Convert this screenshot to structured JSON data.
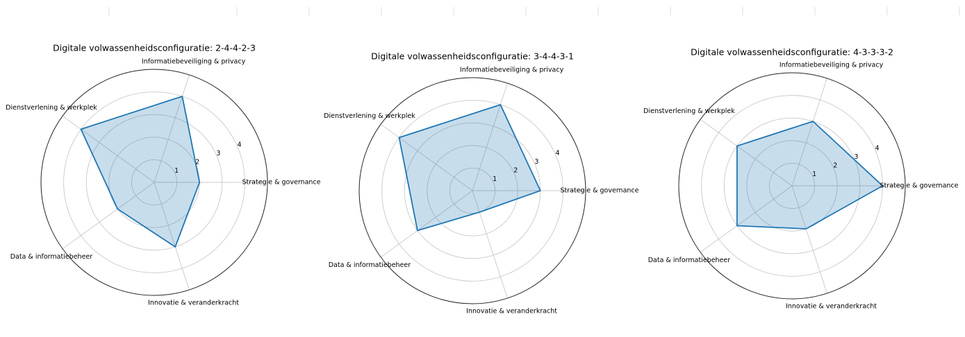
{
  "chart_data": [
    {
      "type": "radar",
      "title": "Digitale volwassenheidsconfiguratie: 2-4-4-2-3",
      "categories": [
        "Strategie & governance",
        "Informatiebeveiliging & privacy",
        "Dienstverlening & werkplek",
        "Data & informatiebeheer",
        "Innovatie & veranderkracht"
      ],
      "values": [
        2,
        4,
        4,
        2,
        3
      ],
      "color": "#1f77b4",
      "ylim": [
        0,
        5
      ],
      "yticks": [
        1,
        2,
        3,
        4
      ]
    },
    {
      "type": "radar",
      "title": "Digitale volwassenheidsconfiguratie: 3-4-4-3-1",
      "categories": [
        "Strategie & governance",
        "Informatiebeveiliging & privacy",
        "Dienstverlening & werkplek",
        "Data & informatiebeheer",
        "Innovatie & veranderkracht"
      ],
      "values": [
        3,
        4,
        4,
        3,
        1
      ],
      "color": "#1f77b4",
      "ylim": [
        0,
        5
      ],
      "yticks": [
        1,
        2,
        3,
        4
      ]
    },
    {
      "type": "radar",
      "title": "Digitale volwassenheidsconfiguratie: 4-3-3-3-2",
      "categories": [
        "Strategie & governance",
        "Informatiebeveiliging & privacy",
        "Dienstverlening & werkplek",
        "Data & informatiebeheer",
        "Innovatie & veranderkracht"
      ],
      "values": [
        4,
        3,
        3,
        3,
        2
      ],
      "color": "#1f77b4",
      "ylim": [
        0,
        5
      ],
      "yticks": [
        1,
        2,
        3,
        4
      ]
    }
  ]
}
